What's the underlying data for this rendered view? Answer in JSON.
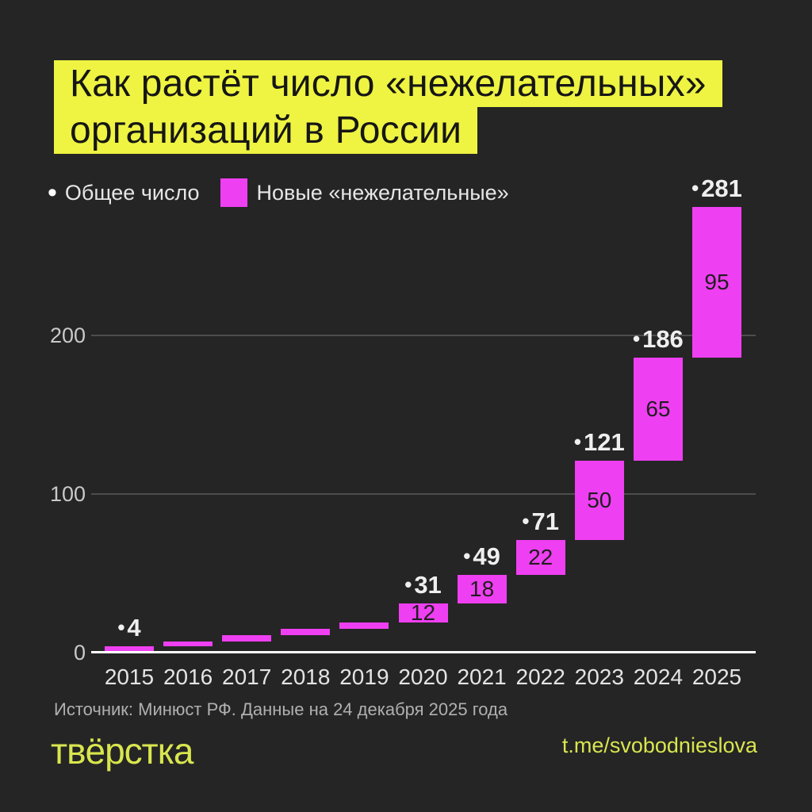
{
  "title": {
    "line1": "Как растёт число «нежелательных»",
    "line2": "организаций в России"
  },
  "legend": {
    "total_label": "Общее число",
    "new_label": "Новые «нежелательные»"
  },
  "colors": {
    "background": "#252525",
    "bar_magenta": "#ef3ff2",
    "title_highlight_yellow": "#eef441",
    "brand_yellow_green": "#d9e64e",
    "total_label_white": "#efefef",
    "bar_label_dark": "#1f1f1f",
    "grid_gray": "#4d4d4d"
  },
  "chart_data": {
    "type": "bar",
    "variant": "waterfall",
    "title": "Как растёт число «нежелательных» организаций в России",
    "x": [
      "2015",
      "2016",
      "2017",
      "2018",
      "2019",
      "2020",
      "2021",
      "2022",
      "2023",
      "2024",
      "2025"
    ],
    "series": [
      {
        "name": "Общее число",
        "values": [
          4,
          7,
          11,
          15,
          19,
          31,
          49,
          71,
          121,
          186,
          281
        ]
      },
      {
        "name": "Новые «нежелательные»",
        "values": [
          4,
          3,
          4,
          4,
          4,
          12,
          18,
          22,
          50,
          65,
          95
        ]
      }
    ],
    "total_labels": [
      4,
      null,
      null,
      null,
      null,
      31,
      49,
      71,
      121,
      186,
      281
    ],
    "delta_labels": [
      null,
      null,
      null,
      null,
      null,
      12,
      18,
      22,
      50,
      65,
      95
    ],
    "yticks": [
      0,
      100,
      200
    ],
    "ylim": [
      0,
      290
    ],
    "grid": "horizontal-lines",
    "legend_position": "top-left",
    "bar_color": "#ef3ff2"
  },
  "footer": {
    "source": "Источник: Минюст РФ. Данные на 24 декабря 2025 года",
    "logo": "твёрстка",
    "telegram": "t.me/svobodnieslova"
  }
}
